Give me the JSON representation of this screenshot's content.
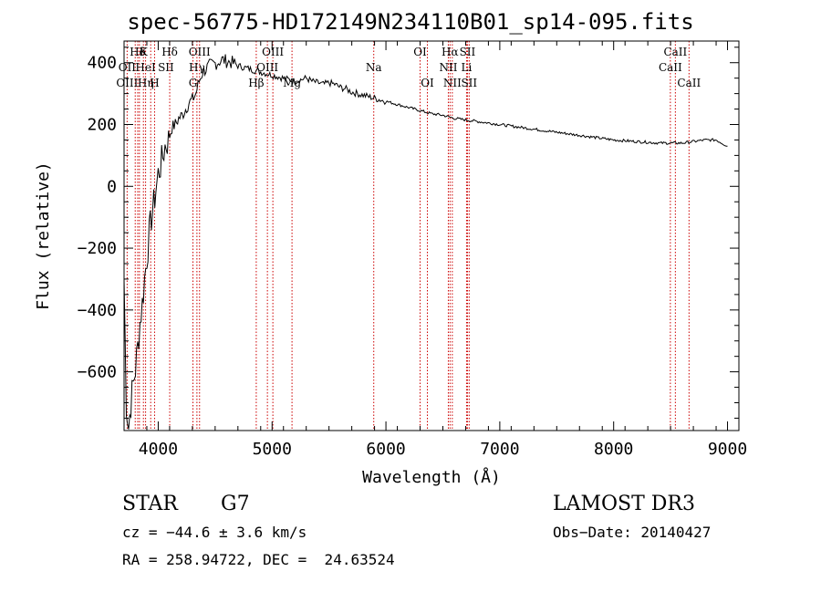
{
  "chart_data": {
    "type": "line",
    "title": "spec-56775-HD172149N234110B01_sp14-095.fits",
    "xlabel": "Wavelength (Å)",
    "ylabel": "Flux (relative)",
    "xlim": [
      3700,
      9100
    ],
    "ylim": [
      -790,
      470
    ],
    "xticks": [
      4000,
      5000,
      6000,
      7000,
      8000,
      9000
    ],
    "yticks": [
      -600,
      -400,
      -200,
      0,
      200,
      400
    ],
    "series": [
      {
        "name": "spectrum",
        "x": [
          3700,
          3720,
          3740,
          3760,
          3780,
          3800,
          3820,
          3840,
          3860,
          3880,
          3900,
          3920,
          3940,
          3960,
          3980,
          4000,
          4030,
          4060,
          4090,
          4120,
          4150,
          4180,
          4210,
          4240,
          4270,
          4300,
          4330,
          4360,
          4390,
          4420,
          4450,
          4480,
          4520,
          4560,
          4600,
          4650,
          4700,
          4750,
          4800,
          4850,
          4900,
          4950,
          5000,
          5050,
          5100,
          5150,
          5200,
          5250,
          5300,
          5350,
          5400,
          5450,
          5500,
          5550,
          5600,
          5650,
          5700,
          5750,
          5800,
          5850,
          5900,
          5950,
          6000,
          6100,
          6200,
          6300,
          6400,
          6500,
          6600,
          6700,
          6800,
          7000,
          7200,
          7400,
          7600,
          7800,
          8000,
          8200,
          8400,
          8600,
          8700,
          8800,
          8900,
          9000
        ],
        "y": [
          -300,
          -700,
          -780,
          -700,
          -640,
          -590,
          -520,
          -440,
          -380,
          -300,
          -230,
          -160,
          -100,
          -60,
          -10,
          40,
          80,
          130,
          150,
          190,
          200,
          220,
          230,
          250,
          270,
          280,
          300,
          340,
          370,
          380,
          390,
          395,
          400,
          410,
          405,
          400,
          390,
          385,
          380,
          375,
          370,
          365,
          360,
          355,
          350,
          345,
          340,
          345,
          350,
          340,
          335,
          330,
          335,
          330,
          320,
          315,
          305,
          300,
          295,
          290,
          285,
          280,
          275,
          265,
          255,
          245,
          235,
          230,
          220,
          215,
          210,
          200,
          190,
          180,
          170,
          160,
          150,
          145,
          140,
          140,
          145,
          150,
          150,
          130
        ]
      }
    ],
    "line_labels": [
      {
        "text": "Hδ",
        "x": 3820,
        "row": 0
      },
      {
        "text": "K",
        "x": 3870,
        "row": 0
      },
      {
        "text": "Hδ",
        "x": 4101,
        "row": 0
      },
      {
        "text": "OII",
        "x": 3727,
        "row": 1
      },
      {
        "text": "HeI",
        "x": 3889,
        "row": 1
      },
      {
        "text": "SII",
        "x": 4068,
        "row": 1
      },
      {
        "text": "OIII",
        "x": 3727,
        "row": 2
      },
      {
        "text": "Hη",
        "x": 3890,
        "row": 2
      },
      {
        "text": "H",
        "x": 3968,
        "row": 2
      },
      {
        "text": "OIII",
        "x": 4363,
        "row": 0
      },
      {
        "text": "Hγ",
        "x": 4340,
        "row": 1
      },
      {
        "text": "G",
        "x": 4305,
        "row": 2
      },
      {
        "text": "OIII",
        "x": 5007,
        "row": 0
      },
      {
        "text": "OIII",
        "x": 4959,
        "row": 1
      },
      {
        "text": "Hβ",
        "x": 4861,
        "row": 2
      },
      {
        "text": "Mg",
        "x": 5175,
        "row": 2
      },
      {
        "text": "Na",
        "x": 5893,
        "row": 1
      },
      {
        "text": "OI",
        "x": 6300,
        "row": 0
      },
      {
        "text": "OI",
        "x": 6364,
        "row": 2
      },
      {
        "text": "Hα",
        "x": 6563,
        "row": 0
      },
      {
        "text": "SII",
        "x": 6716,
        "row": 0
      },
      {
        "text": "NII",
        "x": 6548,
        "row": 1
      },
      {
        "text": "Li",
        "x": 6708,
        "row": 1
      },
      {
        "text": "NII",
        "x": 6583,
        "row": 2
      },
      {
        "text": "SII",
        "x": 6731,
        "row": 2
      },
      {
        "text": "CaII",
        "x": 8542,
        "row": 0
      },
      {
        "text": "CaII",
        "x": 8498,
        "row": 1
      },
      {
        "text": "CaII",
        "x": 8662,
        "row": 2
      }
    ],
    "line_positions": [
      3727,
      3798,
      3820,
      3835,
      3870,
      3889,
      3934,
      3968,
      4101,
      4305,
      4340,
      4363,
      4861,
      4959,
      5007,
      5175,
      5893,
      6300,
      6364,
      6548,
      6563,
      6583,
      6708,
      6716,
      6731,
      8498,
      8542,
      8662
    ]
  },
  "info": {
    "object_type": "STAR",
    "subclass": "G7",
    "survey": "LAMOST DR3",
    "cz": "cz = −44.6 ± 3.6 km/s",
    "obs_date": "Obs−Date: 20140427",
    "coords": "RA = 258.94722, DEC =  24.63524"
  },
  "colors": {
    "line_marker": "#cc0000",
    "spectrum": "#000000"
  }
}
